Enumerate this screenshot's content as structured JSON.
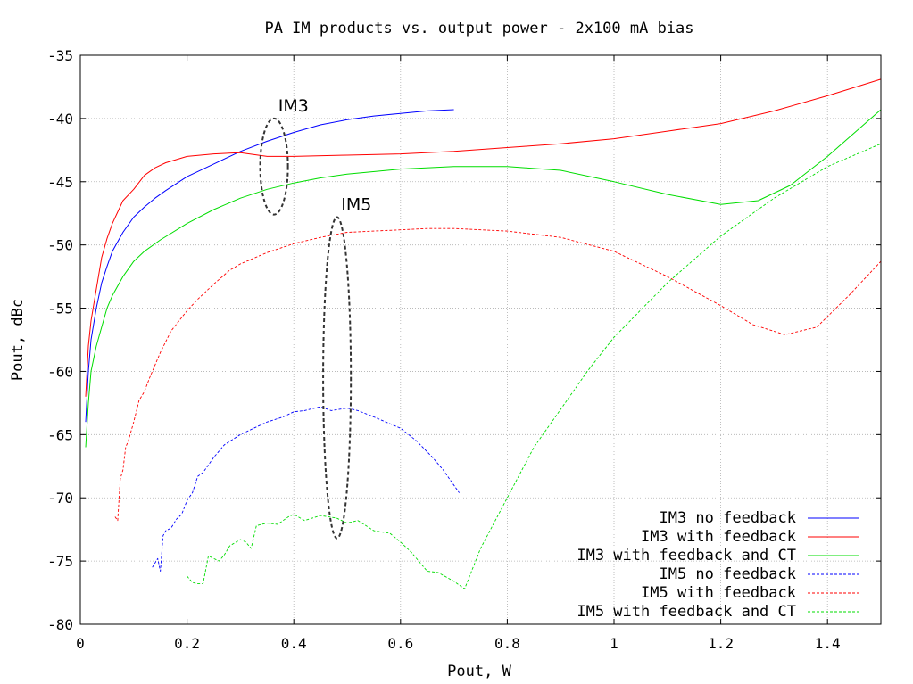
{
  "chart_data": {
    "type": "line",
    "title": "PA IM products vs. output power - 2x100 mA bias",
    "xlabel": "Pout, W",
    "ylabel": "Pout, dBc",
    "xlim": [
      0,
      1.5
    ],
    "ylim": [
      -80,
      -35
    ],
    "xticks": [
      0,
      0.2,
      0.4,
      0.6,
      0.8,
      1,
      1.2,
      1.4
    ],
    "xtick_labels": [
      "0",
      "0.2",
      "0.4",
      "0.6",
      "0.8",
      "1",
      "1.2",
      "1.4"
    ],
    "yticks": [
      -80,
      -75,
      -70,
      -65,
      -60,
      -55,
      -50,
      -45,
      -40,
      -35
    ],
    "ytick_labels": [
      "-80",
      "-75",
      "-70",
      "-65",
      "-60",
      "-55",
      "-50",
      "-45",
      "-40",
      "-35"
    ],
    "grid": true,
    "legend_position": "bottom-right",
    "series": [
      {
        "name": "IM3 no feedback",
        "color": "#0000ff",
        "style": "solid",
        "x": [
          0.01,
          0.015,
          0.02,
          0.03,
          0.04,
          0.05,
          0.06,
          0.08,
          0.1,
          0.12,
          0.14,
          0.16,
          0.2,
          0.25,
          0.3,
          0.35,
          0.4,
          0.45,
          0.5,
          0.55,
          0.6,
          0.65,
          0.7
        ],
        "y": [
          -64,
          -60,
          -57.5,
          -55,
          -53,
          -51.7,
          -50.5,
          -49,
          -47.8,
          -47,
          -46.3,
          -45.7,
          -44.6,
          -43.6,
          -42.6,
          -41.8,
          -41.1,
          -40.5,
          -40.1,
          -39.8,
          -39.6,
          -39.4,
          -39.3
        ]
      },
      {
        "name": "IM3 with feedback",
        "color": "#ff0000",
        "style": "solid",
        "x": [
          0.01,
          0.015,
          0.02,
          0.03,
          0.04,
          0.05,
          0.06,
          0.08,
          0.1,
          0.12,
          0.14,
          0.16,
          0.2,
          0.25,
          0.3,
          0.35,
          0.4,
          0.5,
          0.6,
          0.7,
          0.8,
          0.9,
          1.0,
          1.1,
          1.2,
          1.3,
          1.4,
          1.5
        ],
        "y": [
          -62,
          -58,
          -56,
          -53.5,
          -51,
          -49.5,
          -48.3,
          -46.5,
          -45.6,
          -44.5,
          -43.9,
          -43.5,
          -43,
          -42.8,
          -42.7,
          -43,
          -43,
          -42.9,
          -42.8,
          -42.6,
          -42.3,
          -42,
          -41.6,
          -41,
          -40.4,
          -39.4,
          -38.2,
          -36.9
        ]
      },
      {
        "name": "IM3 with feedback and CT",
        "color": "#00dd00",
        "style": "solid",
        "x": [
          0.01,
          0.015,
          0.02,
          0.03,
          0.04,
          0.05,
          0.06,
          0.08,
          0.1,
          0.12,
          0.15,
          0.2,
          0.25,
          0.3,
          0.35,
          0.4,
          0.45,
          0.5,
          0.6,
          0.7,
          0.8,
          0.9,
          1.0,
          1.1,
          1.2,
          1.27,
          1.33,
          1.4,
          1.5
        ],
        "y": [
          -66,
          -62.5,
          -60,
          -58,
          -56.5,
          -55,
          -54,
          -52.5,
          -51.3,
          -50.5,
          -49.6,
          -48.3,
          -47.2,
          -46.3,
          -45.6,
          -45.1,
          -44.7,
          -44.4,
          -44,
          -43.8,
          -43.8,
          -44.1,
          -45,
          -46,
          -46.8,
          -46.5,
          -45.3,
          -43,
          -39.3
        ]
      },
      {
        "name": "IM5 no feedback",
        "color": "#0000ff",
        "style": "dashed",
        "x": [
          0.135,
          0.145,
          0.15,
          0.155,
          0.16,
          0.17,
          0.18,
          0.19,
          0.2,
          0.21,
          0.22,
          0.23,
          0.25,
          0.27,
          0.3,
          0.33,
          0.35,
          0.38,
          0.4,
          0.42,
          0.45,
          0.47,
          0.5,
          0.52,
          0.55,
          0.6,
          0.63,
          0.66,
          0.68,
          0.71
        ],
        "y": [
          -75.5,
          -74.8,
          -75.8,
          -73,
          -72.6,
          -72.4,
          -71.7,
          -71.3,
          -70.2,
          -69.6,
          -68.3,
          -68,
          -66.8,
          -65.8,
          -65,
          -64.4,
          -64,
          -63.6,
          -63.2,
          -63.1,
          -62.8,
          -63.1,
          -62.9,
          -63.1,
          -63.6,
          -64.5,
          -65.5,
          -66.8,
          -67.8,
          -69.6
        ]
      },
      {
        "name": "IM5 with feedback",
        "color": "#ff0000",
        "style": "dashed",
        "x": [
          0.065,
          0.07,
          0.075,
          0.08,
          0.085,
          0.09,
          0.1,
          0.11,
          0.12,
          0.13,
          0.14,
          0.15,
          0.17,
          0.2,
          0.22,
          0.25,
          0.28,
          0.3,
          0.35,
          0.4,
          0.45,
          0.5,
          0.55,
          0.6,
          0.65,
          0.7,
          0.8,
          0.9,
          1.0,
          1.1,
          1.2,
          1.26,
          1.32,
          1.38,
          1.44,
          1.5
        ],
        "y": [
          -71.5,
          -71.8,
          -68.5,
          -67.8,
          -66,
          -65.5,
          -64,
          -62.3,
          -61.6,
          -60.5,
          -59.5,
          -58.5,
          -56.8,
          -55.2,
          -54.3,
          -53.1,
          -52,
          -51.5,
          -50.6,
          -49.9,
          -49.4,
          -49,
          -48.9,
          -48.8,
          -48.7,
          -48.7,
          -48.9,
          -49.4,
          -50.5,
          -52.5,
          -54.8,
          -56.3,
          -57.1,
          -56.5,
          -54,
          -51.3
        ]
      },
      {
        "name": "IM5 with feedback and CT",
        "color": "#00dd00",
        "style": "dashed",
        "x": [
          0.2,
          0.21,
          0.22,
          0.23,
          0.24,
          0.25,
          0.26,
          0.27,
          0.28,
          0.3,
          0.31,
          0.32,
          0.33,
          0.35,
          0.37,
          0.38,
          0.39,
          0.4,
          0.42,
          0.45,
          0.48,
          0.5,
          0.52,
          0.55,
          0.58,
          0.6,
          0.62,
          0.65,
          0.67,
          0.7,
          0.72,
          0.75,
          0.8,
          0.85,
          0.9,
          0.95,
          1.0,
          1.1,
          1.2,
          1.3,
          1.4,
          1.5
        ],
        "y": [
          -76.2,
          -76.7,
          -76.8,
          -76.8,
          -74.6,
          -74.8,
          -75,
          -74.5,
          -73.8,
          -73.3,
          -73.5,
          -74,
          -72.2,
          -72,
          -72.1,
          -71.8,
          -71.5,
          -71.3,
          -71.8,
          -71.4,
          -71.6,
          -72,
          -71.8,
          -72.6,
          -72.8,
          -73.5,
          -74.3,
          -75.8,
          -75.9,
          -76.6,
          -77.2,
          -74,
          -70,
          -66,
          -63,
          -60,
          -57.3,
          -53,
          -49.3,
          -46.3,
          -43.8,
          -42
        ]
      }
    ],
    "annotations": [
      {
        "label": "IM3",
        "cx": 0.363,
        "cy": -43.8,
        "rx": 0.026,
        "ry": 3.8
      },
      {
        "label": "IM5",
        "cx": 0.481,
        "cy": -60.5,
        "rx": 0.026,
        "ry": 12.7
      }
    ]
  }
}
